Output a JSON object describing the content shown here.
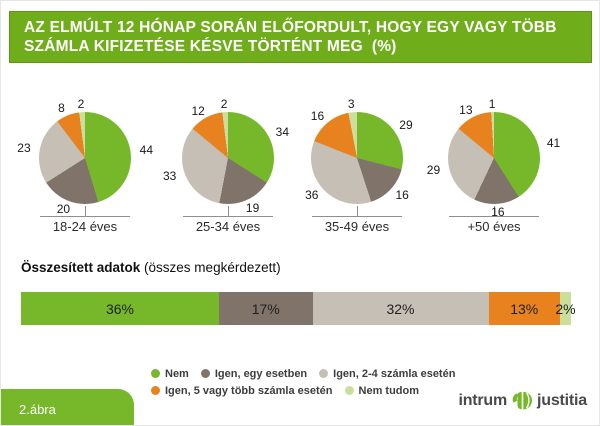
{
  "title": "AZ ELMÚLT 12 HÓNAP SORÁN ELŐFORDULT, HOGY EGY VAGY TÖBB SZÁMLA KIFIZETÉSE KÉSVE TÖRTÉNT MEG  (%)",
  "colors": {
    "banner_green": "#70AD1A",
    "nem_green": "#76B82A",
    "igen_egy_taupe": "#80746A",
    "igen_24_gray": "#C6BFB6",
    "igen_5_orange": "#E8821F",
    "nem_tudom_pale": "#CCDE9C"
  },
  "chart_data": [
    {
      "type": "pie",
      "title": "18-24 éves",
      "categories": [
        "Nem",
        "Igen, egy esetben",
        "Igen, 2-4 számla esetén",
        "Igen, 5 vagy több számla esetén",
        "Nem tudom"
      ],
      "values": [
        44,
        20,
        23,
        8,
        2
      ],
      "colors": [
        "#76B82A",
        "#80746A",
        "#C6BFB6",
        "#E8821F",
        "#CCDE9C"
      ]
    },
    {
      "type": "pie",
      "title": "25-34 éves",
      "categories": [
        "Nem",
        "Igen, egy esetben",
        "Igen, 2-4 számla esetén",
        "Igen, 5 vagy több számla esetén",
        "Nem tudom"
      ],
      "values": [
        34,
        19,
        33,
        12,
        2
      ],
      "colors": [
        "#76B82A",
        "#80746A",
        "#C6BFB6",
        "#E8821F",
        "#CCDE9C"
      ]
    },
    {
      "type": "pie",
      "title": "35-49 éves",
      "categories": [
        "Nem",
        "Igen, egy esetben",
        "Igen, 2-4 számla esetén",
        "Igen, 5 vagy több számla esetén",
        "Nem tudom"
      ],
      "values": [
        29,
        16,
        36,
        16,
        3
      ],
      "colors": [
        "#76B82A",
        "#80746A",
        "#C6BFB6",
        "#E8821F",
        "#CCDE9C"
      ]
    },
    {
      "type": "pie",
      "title": "+50 éves",
      "categories": [
        "Nem",
        "Igen, egy esetben",
        "Igen, 2-4 számla esetén",
        "Igen, 5 vagy több számla esetén",
        "Nem tudom"
      ],
      "values": [
        41,
        16,
        29,
        13,
        1
      ],
      "colors": [
        "#76B82A",
        "#80746A",
        "#C6BFB6",
        "#E8821F",
        "#CCDE9C"
      ]
    },
    {
      "type": "bar",
      "subtype": "stacked_horizontal",
      "title": "Összesített adatok (összes megkérdezett)",
      "categories": [
        "Nem",
        "Igen, egy esetben",
        "Igen, 2-4 számla esetén",
        "Igen, 5 vagy több számla esetén",
        "Nem tudom"
      ],
      "values": [
        36,
        17,
        32,
        13,
        2
      ],
      "labels": [
        "36%",
        "17%",
        "32%",
        "13%",
        "2%"
      ],
      "colors": [
        "#76B82A",
        "#80746A",
        "#C6BFB6",
        "#E8821F",
        "#CCDE9C"
      ]
    }
  ],
  "aggregate": {
    "heading_bold": "Összesített adatok",
    "heading_normal": " (összes megkérdezett)"
  },
  "legend": {
    "rows": [
      [
        {
          "label": "Nem",
          "color": "#76B82A"
        },
        {
          "label": "Igen, egy esetben",
          "color": "#80746A"
        },
        {
          "label": "Igen, 2-4 számla esetén",
          "color": "#C6BFB6"
        }
      ],
      [
        {
          "label": "Igen, 5 vagy több számla esetén",
          "color": "#E8821F"
        },
        {
          "label": "Nem tudom",
          "color": "#CCDE9C"
        }
      ]
    ]
  },
  "footer": {
    "figure_label": "2.ábra",
    "brand_left": "intrum",
    "brand_right": "justitia"
  }
}
